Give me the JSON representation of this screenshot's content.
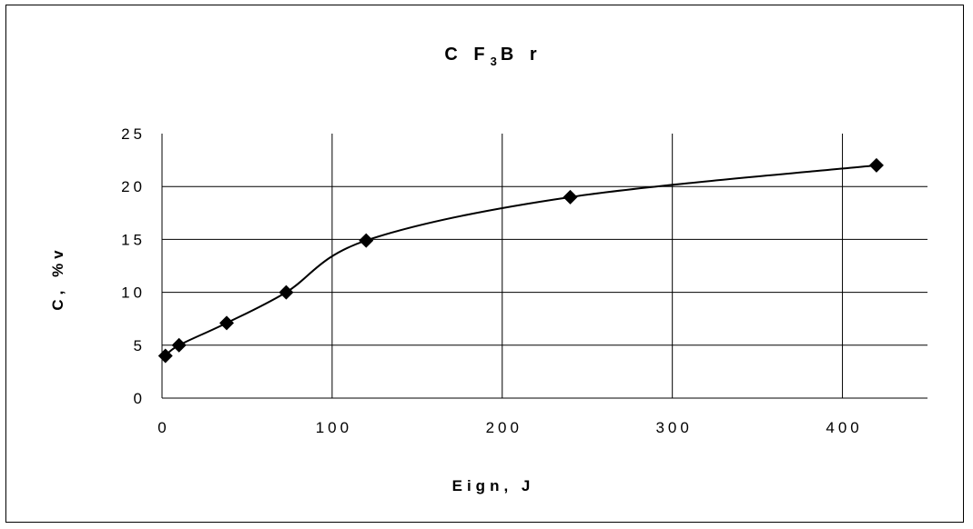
{
  "chart_data": {
    "type": "line",
    "title_main": "C F",
    "title_sub": "3",
    "title_end": "B r",
    "xlabel": "Eign, J",
    "ylabel": "C, %v",
    "xlim": [
      0,
      450
    ],
    "ylim": [
      0,
      25
    ],
    "xticks": [
      0,
      100,
      200,
      300,
      400
    ],
    "xtick_labels": [
      "0",
      "100",
      "200",
      "300",
      "400"
    ],
    "yticks": [
      0,
      5,
      10,
      15,
      20,
      25
    ],
    "ytick_labels": [
      "0",
      "5",
      "10",
      "15",
      "20",
      "25"
    ],
    "grid": true,
    "marker": "diamond",
    "line_color": "#000000",
    "series": [
      {
        "x": [
          2,
          10,
          38,
          73,
          120,
          240,
          420
        ],
        "y": [
          4,
          5,
          7.1,
          10,
          14.9,
          19,
          22
        ]
      }
    ]
  }
}
